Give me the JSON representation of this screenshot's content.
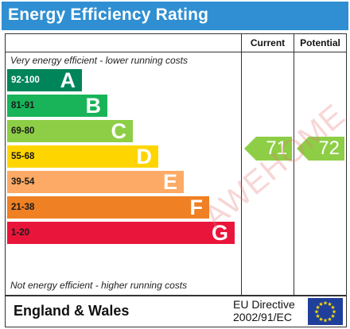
{
  "title": "Energy Efficiency Rating",
  "columns": {
    "current": "Current",
    "potential": "Potential"
  },
  "top_note": "Very energy efficient - lower running costs",
  "bottom_note": "Not energy efficient - higher running costs",
  "bands": [
    {
      "range": "92-100",
      "letter": "A",
      "color": "#00845a"
    },
    {
      "range": "81-91",
      "letter": "B",
      "color": "#19b459"
    },
    {
      "range": "69-80",
      "letter": "C",
      "color": "#8dce46"
    },
    {
      "range": "55-68",
      "letter": "D",
      "color": "#ffd500"
    },
    {
      "range": "39-54",
      "letter": "E",
      "color": "#fcaa65"
    },
    {
      "range": "21-38",
      "letter": "F",
      "color": "#ef8023"
    },
    {
      "range": "1-20",
      "letter": "G",
      "color": "#e9153b"
    }
  ],
  "current_rating": {
    "value": "71",
    "band": "C",
    "color": "#8dce46"
  },
  "potential_rating": {
    "value": "72",
    "band": "C",
    "color": "#8dce46"
  },
  "footer": {
    "region": "England & Wales",
    "directive_line1": "EU Directive",
    "directive_line2": "2002/91/EC"
  },
  "watermark": "AWEHOME",
  "colors": {
    "title_bar": "#2f8fd2",
    "eu_flag": "#1f3f9a",
    "eu_stars": "#ffdd00"
  },
  "icons": {
    "eu_flag": "eu-flag-icon"
  }
}
